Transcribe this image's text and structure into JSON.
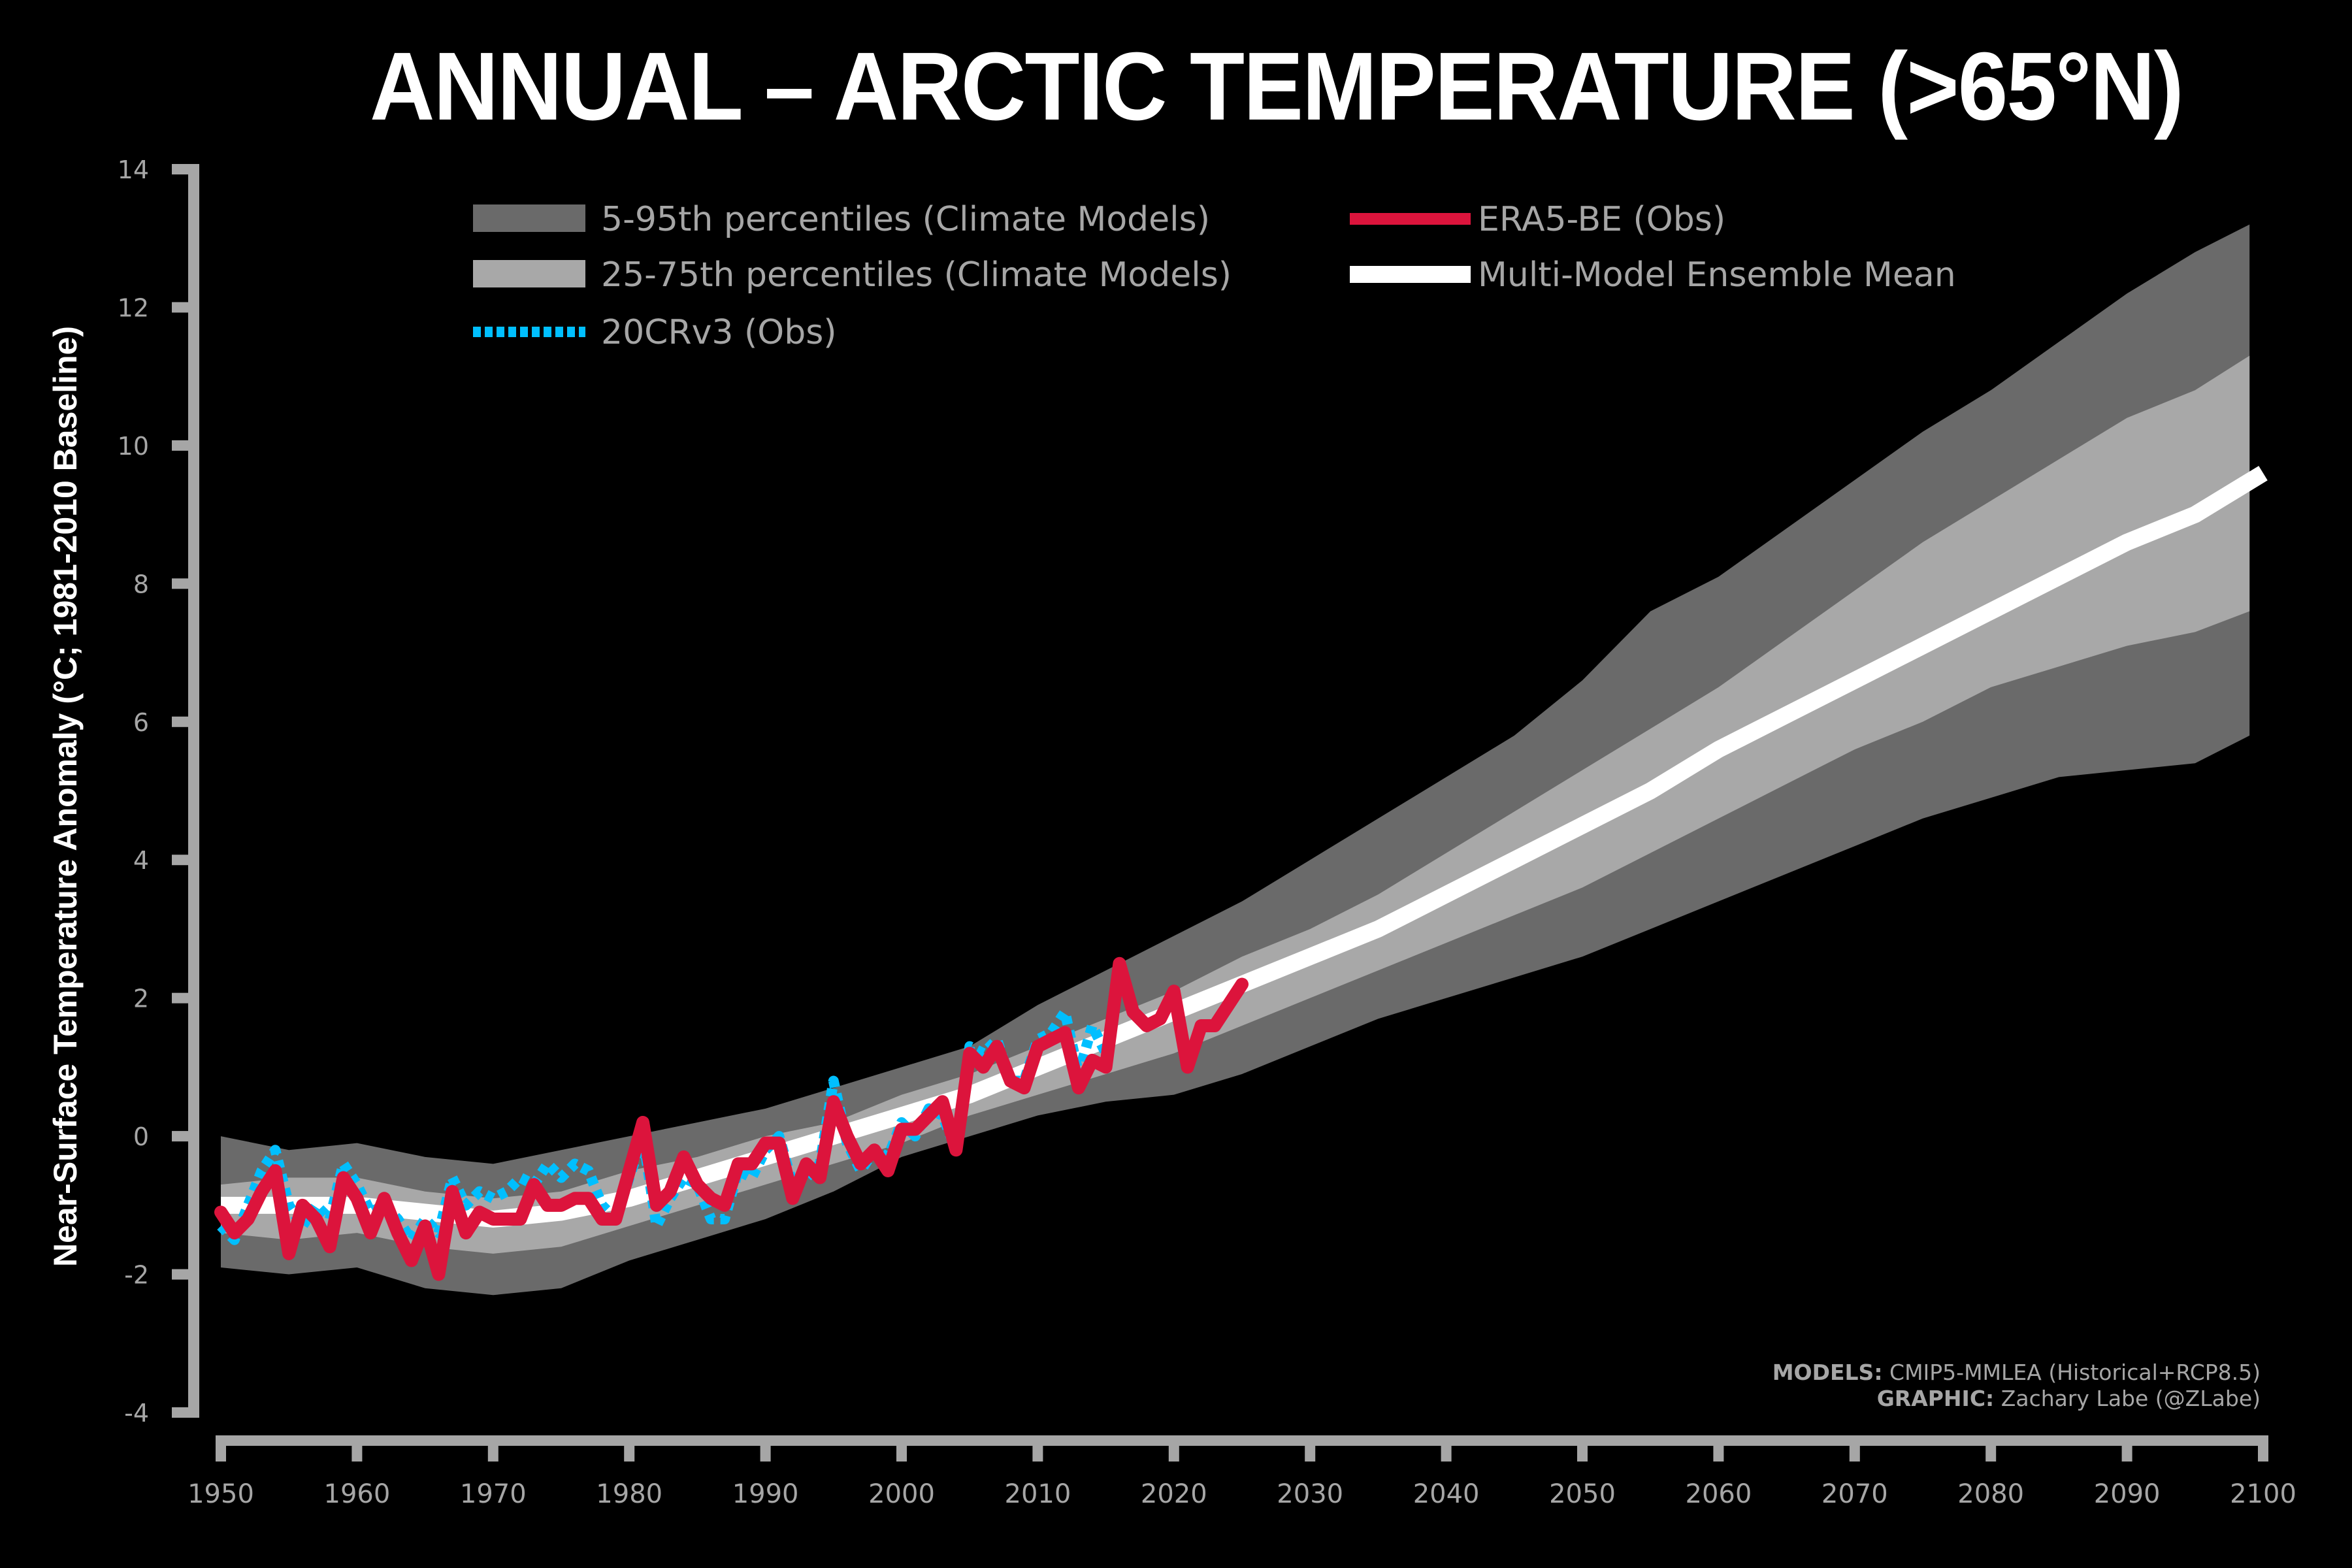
{
  "chart_data": {
    "type": "line",
    "title": "ANNUAL – ARCTIC TEMPERATURE (>65°N)",
    "ylabel": "Near-Surface Temperature Anomaly (°C; 1981-2010 Baseline)",
    "xlabel": "",
    "xlim": [
      1950,
      2100
    ],
    "ylim": [
      -4,
      14
    ],
    "xticks": [
      1950,
      1960,
      1970,
      1980,
      1990,
      2000,
      2010,
      2020,
      2030,
      2040,
      2050,
      2060,
      2070,
      2080,
      2090,
      2100
    ],
    "yticks": [
      -4,
      -2,
      0,
      2,
      4,
      6,
      8,
      10,
      12,
      14
    ],
    "grid": false,
    "legend_position": "top",
    "legend": [
      {
        "label": "5-95th percentiles (Climate Models)",
        "kind": "band",
        "color": "#6a6a6a"
      },
      {
        "label": "25-75th percentiles (Climate Models)",
        "kind": "band",
        "color": "#a8a8a8"
      },
      {
        "label": "20CRv3 (Obs)",
        "kind": "dotted-line",
        "color": "#00bfff"
      },
      {
        "label": "ERA5-BE (Obs)",
        "kind": "line",
        "color": "#dc143c"
      },
      {
        "label": "Multi-Model Ensemble Mean",
        "kind": "line",
        "color": "#ffffff"
      }
    ],
    "credits": [
      {
        "bold": "MODELS:",
        "text": " CMIP5-MMLEA (Historical+RCP8.5)"
      },
      {
        "bold": "GRAPHIC:",
        "text": " Zachary Labe (@ZLabe)"
      }
    ],
    "series": [
      {
        "name": "5-95th percentiles (Climate Models)",
        "type": "band",
        "x": [
          1950,
          1955,
          1960,
          1965,
          1970,
          1975,
          1980,
          1985,
          1990,
          1995,
          2000,
          2005,
          2010,
          2015,
          2020,
          2025,
          2030,
          2035,
          2040,
          2045,
          2050,
          2055,
          2060,
          2065,
          2070,
          2075,
          2080,
          2085,
          2090,
          2095,
          2099
        ],
        "upper": [
          0.0,
          -0.2,
          -0.1,
          -0.3,
          -0.4,
          -0.2,
          0.0,
          0.2,
          0.4,
          0.7,
          1.0,
          1.3,
          1.9,
          2.4,
          2.9,
          3.4,
          4.0,
          4.6,
          5.2,
          5.8,
          6.6,
          7.6,
          8.1,
          8.8,
          9.5,
          10.2,
          10.8,
          11.5,
          12.2,
          12.8,
          13.2
        ],
        "lower": [
          -1.9,
          -2.0,
          -1.9,
          -2.2,
          -2.3,
          -2.2,
          -1.8,
          -1.5,
          -1.2,
          -0.8,
          -0.3,
          0.0,
          0.3,
          0.5,
          0.6,
          0.9,
          1.3,
          1.7,
          2.0,
          2.3,
          2.6,
          3.0,
          3.4,
          3.8,
          4.2,
          4.6,
          4.9,
          5.2,
          5.3,
          5.4,
          5.8
        ]
      },
      {
        "name": "25-75th percentiles (Climate Models)",
        "type": "band",
        "x": [
          1950,
          1955,
          1960,
          1965,
          1970,
          1975,
          1980,
          1985,
          1990,
          1995,
          2000,
          2005,
          2010,
          2015,
          2020,
          2025,
          2030,
          2035,
          2040,
          2045,
          2050,
          2055,
          2060,
          2065,
          2070,
          2075,
          2080,
          2085,
          2090,
          2095,
          2099
        ],
        "upper": [
          -0.7,
          -0.6,
          -0.6,
          -0.8,
          -0.9,
          -0.8,
          -0.5,
          -0.3,
          0.0,
          0.2,
          0.6,
          0.9,
          1.3,
          1.7,
          2.1,
          2.6,
          3.0,
          3.5,
          4.1,
          4.7,
          5.3,
          5.9,
          6.5,
          7.2,
          7.9,
          8.6,
          9.2,
          9.8,
          10.4,
          10.8,
          11.3
        ],
        "lower": [
          -1.4,
          -1.5,
          -1.4,
          -1.6,
          -1.7,
          -1.6,
          -1.3,
          -1.0,
          -0.7,
          -0.4,
          -0.1,
          0.3,
          0.6,
          0.9,
          1.2,
          1.6,
          2.0,
          2.4,
          2.8,
          3.2,
          3.6,
          4.1,
          4.6,
          5.1,
          5.6,
          6.0,
          6.5,
          6.8,
          7.1,
          7.3,
          7.6
        ]
      },
      {
        "name": "Multi-Model Ensemble Mean",
        "type": "line",
        "x": [
          1950,
          1955,
          1960,
          1965,
          1970,
          1975,
          1980,
          1985,
          1990,
          1995,
          2000,
          2005,
          2010,
          2015,
          2020,
          2025,
          2030,
          2035,
          2040,
          2045,
          2050,
          2055,
          2060,
          2065,
          2070,
          2075,
          2080,
          2085,
          2090,
          2095,
          2100
        ],
        "y": [
          -1.0,
          -1.0,
          -1.0,
          -1.1,
          -1.2,
          -1.1,
          -0.9,
          -0.6,
          -0.3,
          0.0,
          0.3,
          0.6,
          1.0,
          1.4,
          1.8,
          2.2,
          2.6,
          3.0,
          3.5,
          4.0,
          4.5,
          5.0,
          5.6,
          6.1,
          6.6,
          7.1,
          7.6,
          8.1,
          8.6,
          9.0,
          9.6
        ]
      },
      {
        "name": "ERA5-BE (Obs)",
        "type": "line",
        "x": [
          1950,
          1951,
          1952,
          1953,
          1954,
          1955,
          1956,
          1957,
          1958,
          1959,
          1960,
          1961,
          1962,
          1963,
          1964,
          1965,
          1966,
          1967,
          1968,
          1969,
          1970,
          1971,
          1972,
          1973,
          1974,
          1975,
          1976,
          1977,
          1978,
          1979,
          1980,
          1981,
          1982,
          1983,
          1984,
          1985,
          1986,
          1987,
          1988,
          1989,
          1990,
          1991,
          1992,
          1993,
          1994,
          1995,
          1996,
          1997,
          1998,
          1999,
          2000,
          2001,
          2002,
          2003,
          2004,
          2005,
          2006,
          2007,
          2008,
          2009,
          2010,
          2011,
          2012,
          2013,
          2014,
          2015,
          2016,
          2017,
          2018,
          2019,
          2020,
          2021,
          2022,
          2023,
          2024,
          2025
        ],
        "y": [
          -1.1,
          -1.4,
          -1.2,
          -0.8,
          -0.5,
          -1.7,
          -1.0,
          -1.2,
          -1.6,
          -0.6,
          -0.9,
          -1.4,
          -0.9,
          -1.4,
          -1.8,
          -1.3,
          -2.0,
          -0.8,
          -1.4,
          -1.1,
          -1.2,
          -1.2,
          -1.2,
          -0.7,
          -1.0,
          -1.0,
          -0.9,
          -0.9,
          -1.2,
          -1.2,
          -0.5,
          0.2,
          -1.0,
          -0.8,
          -0.3,
          -0.7,
          -0.9,
          -1.0,
          -0.4,
          -0.4,
          -0.1,
          -0.1,
          -0.9,
          -0.4,
          -0.6,
          0.5,
          0.0,
          -0.4,
          -0.2,
          -0.5,
          0.1,
          0.1,
          0.3,
          0.5,
          -0.2,
          1.2,
          1.0,
          1.3,
          0.8,
          0.7,
          1.3,
          1.4,
          1.5,
          0.7,
          1.1,
          1.0,
          2.5,
          1.8,
          1.6,
          1.7,
          2.1,
          1.0,
          1.6,
          1.6,
          1.9,
          2.2
        ]
      },
      {
        "name": "20CRv3 (Obs)",
        "type": "dotted-line",
        "x": [
          1950,
          1951,
          1952,
          1953,
          1954,
          1955,
          1956,
          1957,
          1958,
          1959,
          1960,
          1961,
          1962,
          1963,
          1964,
          1965,
          1966,
          1967,
          1968,
          1969,
          1970,
          1971,
          1972,
          1973,
          1974,
          1975,
          1976,
          1977,
          1978,
          1979,
          1980,
          1981,
          1982,
          1983,
          1984,
          1985,
          1986,
          1987,
          1988,
          1989,
          1990,
          1991,
          1992,
          1993,
          1994,
          1995,
          1996,
          1997,
          1998,
          1999,
          2000,
          2001,
          2002,
          2003,
          2004,
          2005,
          2006,
          2007,
          2008,
          2009,
          2010,
          2011,
          2012,
          2013,
          2014,
          2015
        ],
        "y": [
          -1.3,
          -1.5,
          -1.0,
          -0.5,
          -0.2,
          -1.0,
          -1.3,
          -1.0,
          -1.2,
          -0.4,
          -0.7,
          -1.1,
          -1.0,
          -1.2,
          -1.5,
          -1.2,
          -1.4,
          -0.6,
          -1.0,
          -0.8,
          -0.9,
          -0.8,
          -0.6,
          -0.7,
          -0.4,
          -0.6,
          -0.4,
          -0.5,
          -1.0,
          -1.2,
          -0.6,
          0.0,
          -1.3,
          -0.9,
          -0.6,
          -0.7,
          -1.2,
          -1.2,
          -0.5,
          -0.6,
          -0.2,
          0.0,
          -0.7,
          -0.6,
          -0.4,
          0.8,
          -0.1,
          -0.5,
          -0.2,
          -0.3,
          0.2,
          0.0,
          0.4,
          0.3,
          -0.2,
          1.3,
          1.2,
          1.4,
          0.8,
          0.8,
          1.4,
          1.5,
          1.8,
          0.9,
          1.6,
          1.2
        ]
      }
    ]
  }
}
